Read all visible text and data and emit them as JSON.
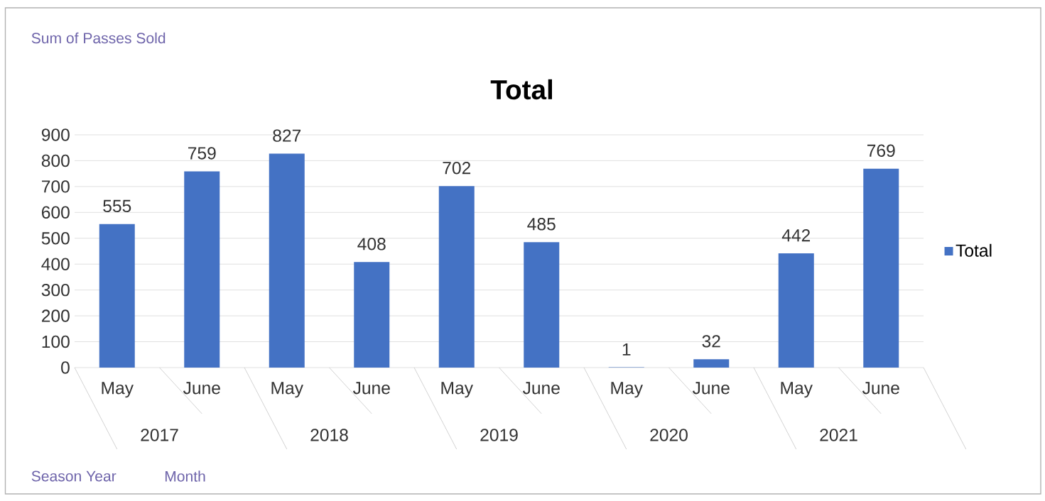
{
  "chart_data": {
    "type": "bar",
    "title": "Total",
    "categories": [
      "May",
      "June",
      "May",
      "June",
      "May",
      "June",
      "May",
      "June",
      "May",
      "June"
    ],
    "series": [
      {
        "name": "Total",
        "color": "#4472c4",
        "values": [
          555,
          759,
          827,
          408,
          702,
          485,
          1,
          32,
          442,
          769
        ]
      }
    ],
    "ylim": [
      0,
      900
    ],
    "yticks": [
      0,
      100,
      200,
      300,
      400,
      500,
      600,
      700,
      800,
      900
    ],
    "grid": "y",
    "legend": "right",
    "data_labels": true,
    "annotations": [
      "2017",
      "2018",
      "2019",
      "2020",
      "2021",
      "Sum of Passes Sold",
      "Season Year",
      "Month"
    ]
  }
}
